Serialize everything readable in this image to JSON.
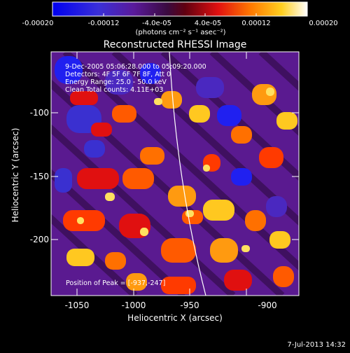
{
  "colorbar": {
    "tick_labels": [
      "-0.00020",
      "-0.00012",
      "-4.0e-05",
      "4.0e-05",
      "0.00012",
      "0.00020"
    ],
    "units_label": "(photons cm⁻² s⁻¹ asec⁻²)"
  },
  "title": "Reconstructed RHESSI Image",
  "info": {
    "line1": "9-Dec-2005 05:06:28.000 to 05:09:20.000",
    "line2": "Detectors: 4F 5F 6F 7F 8F, Att 0",
    "line3": "Energy Range: 25.0 - 50.0 keV",
    "line4": "Clean      Total counts: 4.11E+03"
  },
  "peak_label": "Position of Peak = [-937,-247]",
  "axes": {
    "xlabel": "Heliocentric X (arcsec)",
    "ylabel": "Heliocentric Y (arcsec)",
    "x_ticks": [
      "-1050",
      "-1000",
      "-950",
      "-900"
    ],
    "y_ticks": [
      "-100",
      "-150",
      "-200"
    ]
  },
  "footer_timestamp": "7-Jul-2013 14:32",
  "colors": {
    "background": "#000000",
    "foreground": "#ffffff",
    "colormap_low": "#1010ff",
    "colormap_mid": "#5a1a8a",
    "colormap_high": "#ffffff"
  }
}
